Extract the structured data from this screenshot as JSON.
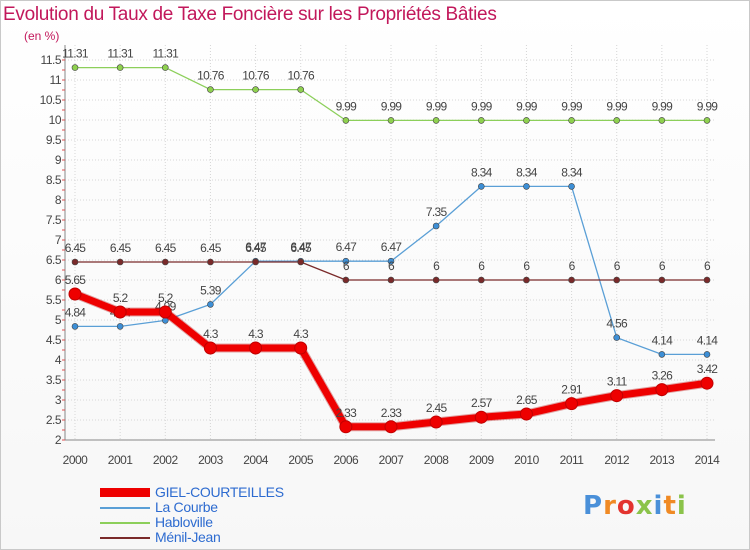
{
  "title": "Evolution du Taux de Taxe Foncière sur les Propriétés Bâties",
  "unit_label": "(en %)",
  "logo": {
    "letters": [
      "P",
      "r",
      "o",
      "x",
      "i",
      "t",
      "i"
    ],
    "colors": [
      "#4a90d9",
      "#f08a24",
      "#e3342f",
      "#8bc34a",
      "#4a90d9",
      "#f08a24",
      "#8bc34a"
    ]
  },
  "chart_data": {
    "type": "line",
    "title": "Evolution du Taux de Taxe Foncière sur les Propriétés Bâties",
    "ylabel": "(en %)",
    "xlabel": "",
    "ylim": [
      2,
      11.5
    ],
    "x": [
      "2000",
      "2001",
      "2002",
      "2003",
      "2004",
      "2005",
      "2006",
      "2007",
      "2008",
      "2009",
      "2010",
      "2011",
      "2012",
      "2013",
      "2014"
    ],
    "yticks": [
      "2",
      "2.5",
      "3",
      "3.5",
      "4",
      "4.5",
      "5",
      "5.5",
      "6",
      "6.5",
      "7",
      "7.5",
      "8",
      "8.5",
      "9",
      "9.5",
      "10",
      "10.5",
      "11",
      "11.5"
    ],
    "series": [
      {
        "name": "Habloville",
        "color": "#8ccf5a",
        "marker": "#8fd14f",
        "width": 1.3,
        "values": [
          11.31,
          11.31,
          11.31,
          10.76,
          10.76,
          10.76,
          9.99,
          9.99,
          9.99,
          9.99,
          9.99,
          9.99,
          9.99,
          9.99,
          9.99
        ],
        "labels": [
          "11.31",
          "11.31",
          "11.31",
          "10.76",
          "10.76",
          "10.76",
          "9.99",
          "9.99",
          "9.99",
          "9.99",
          "9.99",
          "9.99",
          "9.99",
          "9.99",
          "9.99"
        ]
      },
      {
        "name": "La Courbe",
        "color": "#5a9fd6",
        "marker": "#3d8fd6",
        "width": 1.3,
        "values": [
          4.84,
          4.84,
          4.99,
          5.39,
          6.47,
          6.47,
          6.47,
          6.47,
          7.35,
          8.34,
          8.34,
          8.34,
          4.56,
          4.14,
          4.14
        ],
        "labels": [
          "4.84",
          "4.84",
          "4.99",
          "5.39",
          "6.47",
          "6.47",
          "6.47",
          "6.47",
          "7.35",
          "8.34",
          "8.34",
          "8.34",
          "4.56",
          "4.14",
          "4.14"
        ]
      },
      {
        "name": "Ménil-Jean",
        "color": "#7a2a2a",
        "marker": "#7a2a2a",
        "width": 1.3,
        "values": [
          6.45,
          6.45,
          6.45,
          6.45,
          6.45,
          6.45,
          6,
          6,
          6,
          6,
          6,
          6,
          6,
          6,
          6
        ],
        "labels": [
          "6.45",
          "6.45",
          "6.45",
          "6.45",
          "6.45",
          "6.45",
          "6",
          "6",
          "6",
          "6",
          "6",
          "6",
          "6",
          "6",
          "6"
        ]
      },
      {
        "name": "GIEL-COURTEILLES",
        "color": "#ee0000",
        "marker": "#ee0000",
        "width": 7,
        "values": [
          5.65,
          5.2,
          5.2,
          4.3,
          4.3,
          4.3,
          2.33,
          2.33,
          2.45,
          2.57,
          2.65,
          2.91,
          3.11,
          3.26,
          3.42
        ],
        "labels": [
          "5.65",
          "5.2",
          "5.2",
          "4.3",
          "4.3",
          "4.3",
          "2.33",
          "2.33",
          "2.45",
          "2.57",
          "2.65",
          "2.91",
          "3.11",
          "3.26",
          "3.42"
        ]
      }
    ],
    "legend": [
      {
        "name": "GIEL-COURTEILLES",
        "color": "#ee0000",
        "thickness": 9
      },
      {
        "name": "La Courbe",
        "color": "#5a9fd6",
        "thickness": 2
      },
      {
        "name": "Habloville",
        "color": "#8ccf5a",
        "thickness": 2
      },
      {
        "name": "Ménil-Jean",
        "color": "#7a2a2a",
        "thickness": 2
      }
    ]
  }
}
